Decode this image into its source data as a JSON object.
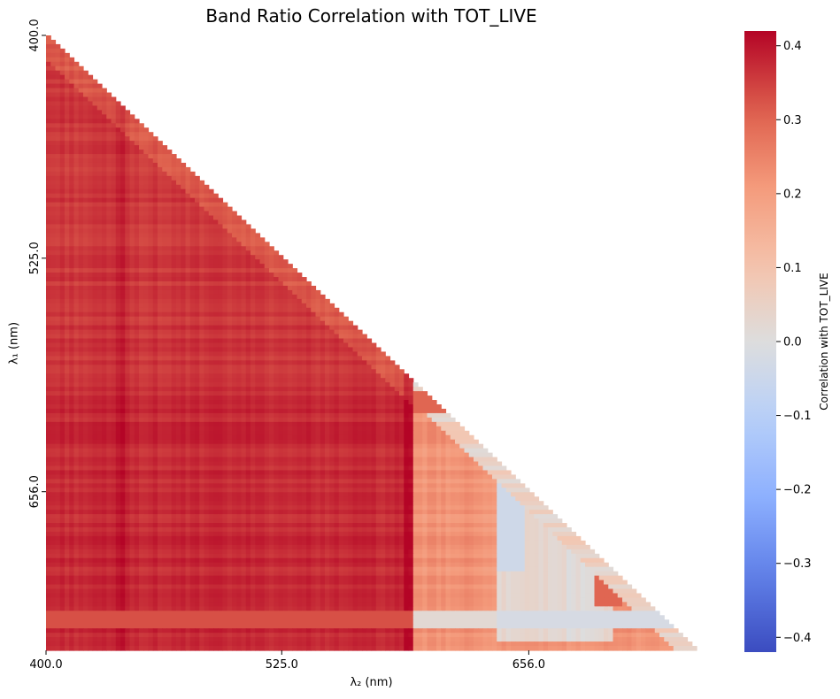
{
  "chart_data": {
    "type": "heatmap",
    "title": "Band Ratio Correlation with TOT_LIVE",
    "xlabel": "λ₂ (nm)",
    "ylabel": "λ₁ (nm)",
    "x_tick_labels": [
      "400.0",
      "525.0",
      "656.0"
    ],
    "y_tick_labels": [
      "400.0",
      "525.0",
      "656.0"
    ],
    "x_range": [
      400,
      745
    ],
    "y_range": [
      400,
      745
    ],
    "mask": "upper-triangle (only λ₂ ≤ λ₁ shown)",
    "colormap": "coolwarm",
    "colorbar": {
      "label": "Correlation with TOT_LIVE",
      "range": [
        -0.42,
        0.42
      ],
      "ticks": [
        "0.4",
        "0.3",
        "0.2",
        "0.1",
        "0.0",
        "−0.1",
        "−0.2",
        "−0.3",
        "−0.4"
      ],
      "tick_values": [
        0.4,
        0.3,
        0.2,
        0.1,
        0.0,
        -0.1,
        -0.2,
        -0.3,
        -0.4
      ]
    },
    "value_summary": [
      {
        "region": "λ₂ < 595 nm (all λ₁)",
        "approx_value": 0.37
      },
      {
        "region": "λ₁ ≥ 595 nm, λ₂ 595–640 nm",
        "approx_value": 0.22
      },
      {
        "region": "λ₁ 690–735 nm, λ₂ 640–700 nm",
        "approx_value": -0.04
      },
      {
        "region": "diagonal edge λ₂ ≈ λ₁",
        "approx_value": 0.05
      },
      {
        "region": "λ₁ ≈ 725 nm row, λ₂ ≥ 595 nm",
        "approx_value": 0.02
      }
    ]
  }
}
